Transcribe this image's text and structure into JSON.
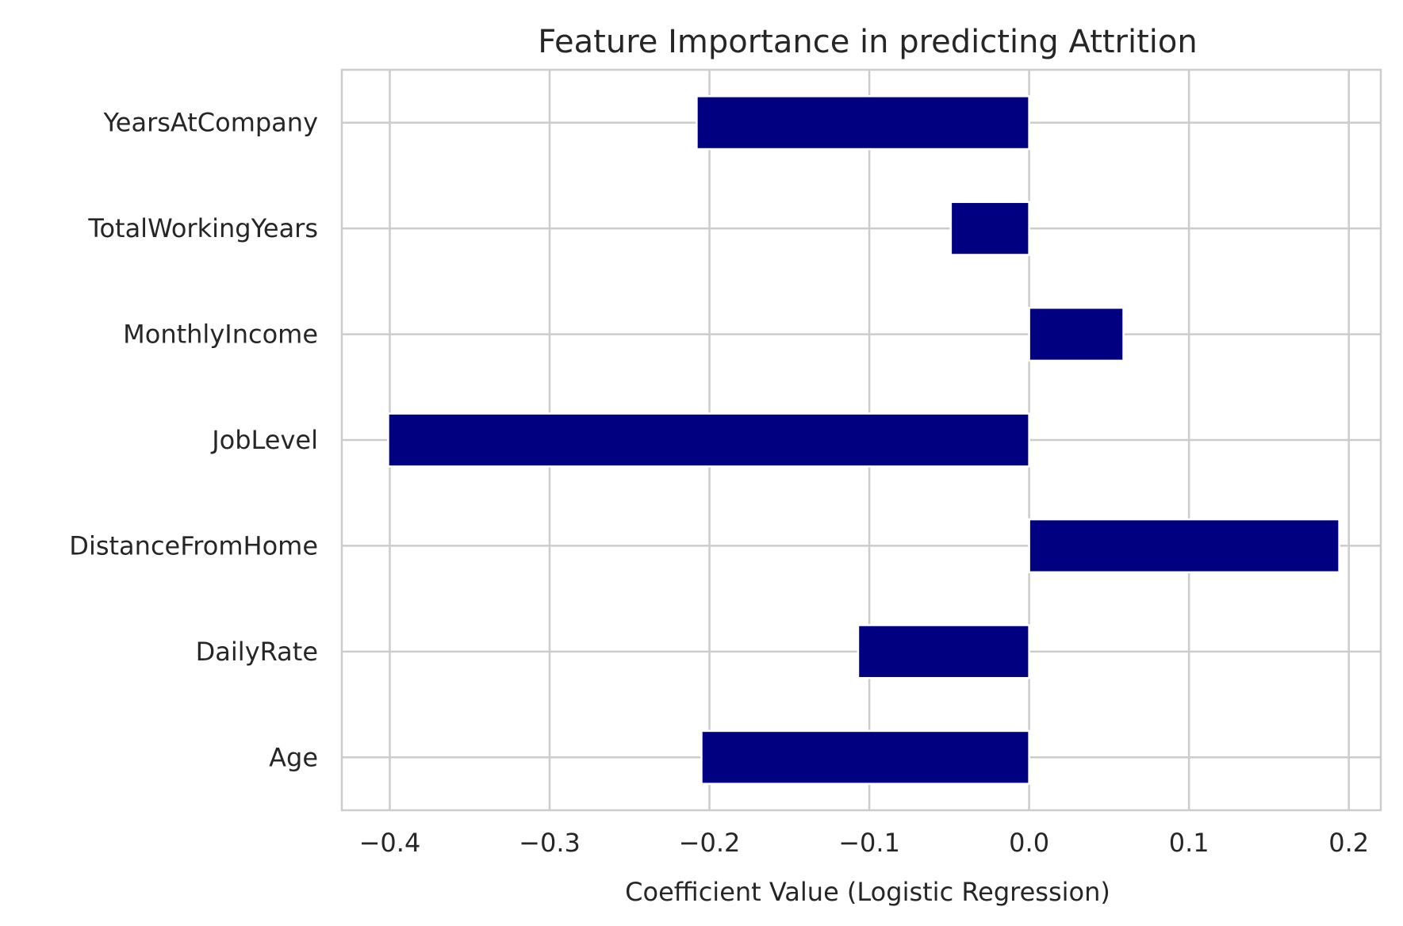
{
  "chart_data": {
    "type": "bar",
    "orientation": "horizontal",
    "title": "Feature Importance in predicting Attrition",
    "xlabel": "Coefficient Value (Logistic Regression)",
    "ylabel": "",
    "xlim": [
      -0.43,
      0.22
    ],
    "x_ticks": [
      -0.4,
      -0.3,
      -0.2,
      -0.1,
      0.0,
      0.1,
      0.2
    ],
    "x_tick_labels": [
      "−0.4",
      "−0.3",
      "−0.2",
      "−0.1",
      "0.0",
      "0.1",
      "0.2"
    ],
    "categories": [
      "Age",
      "DailyRate",
      "DistanceFromHome",
      "JobLevel",
      "MonthlyIncome",
      "TotalWorkingYears",
      "YearsAtCompany"
    ],
    "values": [
      -0.205,
      -0.107,
      0.194,
      -0.401,
      0.059,
      -0.049,
      -0.208
    ],
    "bar_color": "#000080",
    "grid": true
  }
}
